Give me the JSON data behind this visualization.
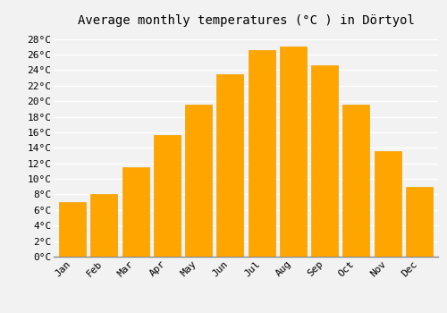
{
  "title": "Average monthly temperatures (°C ) in Dörtyol",
  "months": [
    "Jan",
    "Feb",
    "Mar",
    "Apr",
    "May",
    "Jun",
    "Jul",
    "Aug",
    "Sep",
    "Oct",
    "Nov",
    "Dec"
  ],
  "values": [
    7.0,
    8.1,
    11.5,
    15.6,
    19.6,
    23.5,
    26.6,
    27.0,
    24.6,
    19.6,
    13.6,
    9.0
  ],
  "bar_color": "#FFA500",
  "bar_edge_color": "#F0A000",
  "background_color": "#F2F2F2",
  "plot_bg_color": "#F2F2F2",
  "grid_color": "#FFFFFF",
  "ylim": [
    0,
    29
  ],
  "ytick_step": 2,
  "title_fontsize": 10,
  "tick_fontsize": 8,
  "bar_width": 0.85
}
